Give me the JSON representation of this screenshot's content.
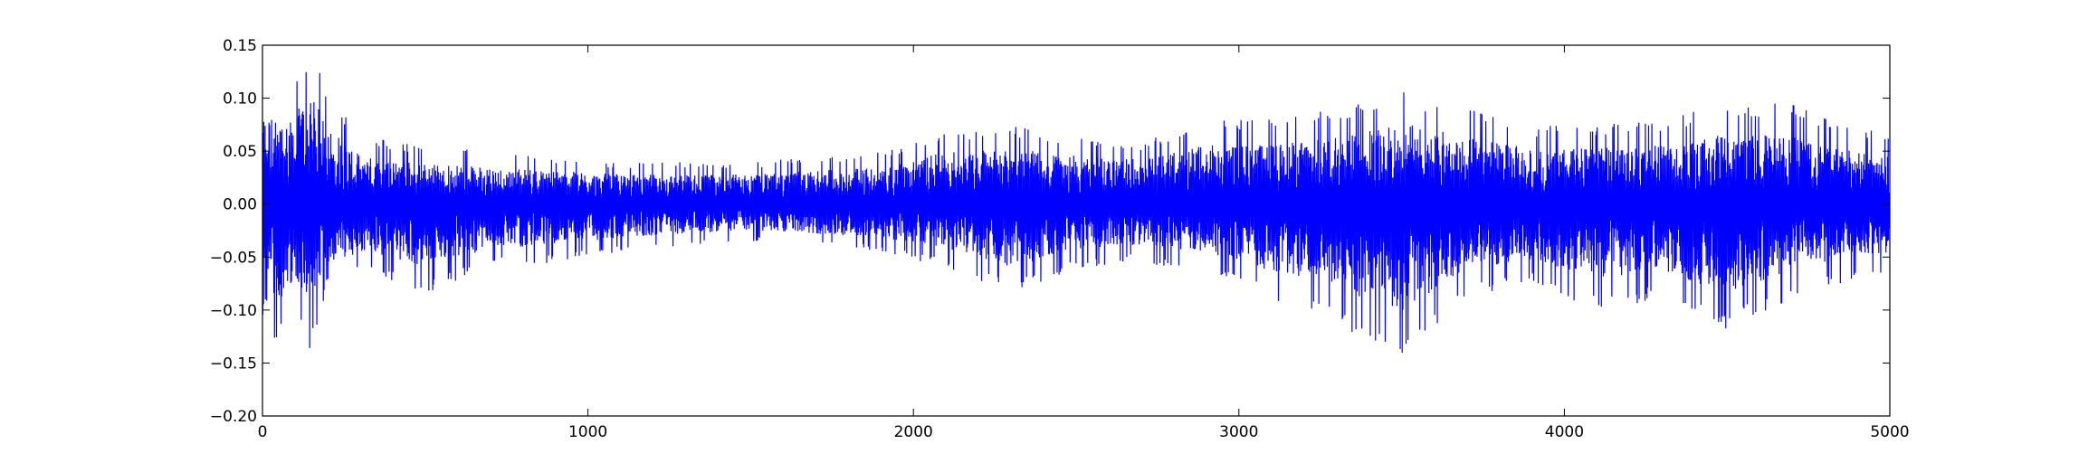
{
  "chart_data": {
    "type": "line",
    "title": "",
    "xlabel": "",
    "ylabel": "",
    "xlim": [
      0,
      5000
    ],
    "ylim": [
      -0.2,
      0.15
    ],
    "grid": false,
    "x_ticks": [
      0,
      1000,
      2000,
      3000,
      4000,
      5000
    ],
    "x_tick_labels": [
      "0",
      "1000",
      "2000",
      "3000",
      "4000",
      "5000"
    ],
    "y_ticks": [
      -0.2,
      -0.15,
      -0.1,
      -0.05,
      0.0,
      0.05,
      0.1,
      0.15
    ],
    "y_tick_labels": [
      "−0.20",
      "−0.15",
      "−0.10",
      "−0.05",
      "0.00",
      "0.05",
      "0.10",
      "0.15"
    ],
    "series": [
      {
        "color": "#0000ff",
        "n_points": 5000,
        "envelope": {
          "x": [
            0,
            50,
            100,
            150,
            200,
            300,
            500,
            700,
            900,
            1100,
            1300,
            1500,
            1700,
            1900,
            2100,
            2300,
            2500,
            2700,
            2900,
            3100,
            3300,
            3500,
            3700,
            3900,
            4100,
            4300,
            4500,
            4700,
            4900,
            5000
          ],
          "max": [
            0.13,
            0.11,
            0.125,
            0.145,
            0.11,
            0.065,
            0.055,
            0.05,
            0.045,
            0.04,
            0.04,
            0.04,
            0.045,
            0.05,
            0.07,
            0.075,
            0.065,
            0.06,
            0.08,
            0.08,
            0.09,
            0.11,
            0.09,
            0.075,
            0.075,
            0.08,
            0.095,
            0.095,
            0.07,
            0.07
          ],
          "min": [
            -0.15,
            -0.13,
            -0.1,
            -0.14,
            -0.08,
            -0.065,
            -0.085,
            -0.06,
            -0.055,
            -0.045,
            -0.04,
            -0.035,
            -0.04,
            -0.045,
            -0.06,
            -0.085,
            -0.06,
            -0.055,
            -0.065,
            -0.09,
            -0.115,
            -0.145,
            -0.09,
            -0.075,
            -0.1,
            -0.09,
            -0.12,
            -0.09,
            -0.07,
            -0.065
          ]
        }
      }
    ]
  }
}
